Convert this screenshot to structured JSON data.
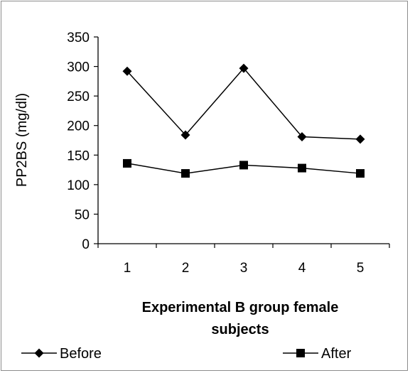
{
  "chart_data": {
    "type": "line",
    "categories": [
      "1",
      "2",
      "3",
      "4",
      "5"
    ],
    "series": [
      {
        "name": "Before",
        "values": [
          292,
          184,
          297,
          181,
          177
        ],
        "marker": "diamond",
        "color": "#000000"
      },
      {
        "name": "After",
        "values": [
          136,
          119,
          133,
          128,
          119
        ],
        "marker": "square",
        "color": "#000000"
      }
    ],
    "ylabel": "PP2BS (mg/dl)",
    "xlabel_lines": [
      "Experimental B group female",
      "subjects"
    ],
    "ylim": [
      0,
      350
    ],
    "yticks": [
      0,
      50,
      100,
      150,
      200,
      250,
      300,
      350
    ],
    "grid": false,
    "legend_position": "bottom"
  }
}
